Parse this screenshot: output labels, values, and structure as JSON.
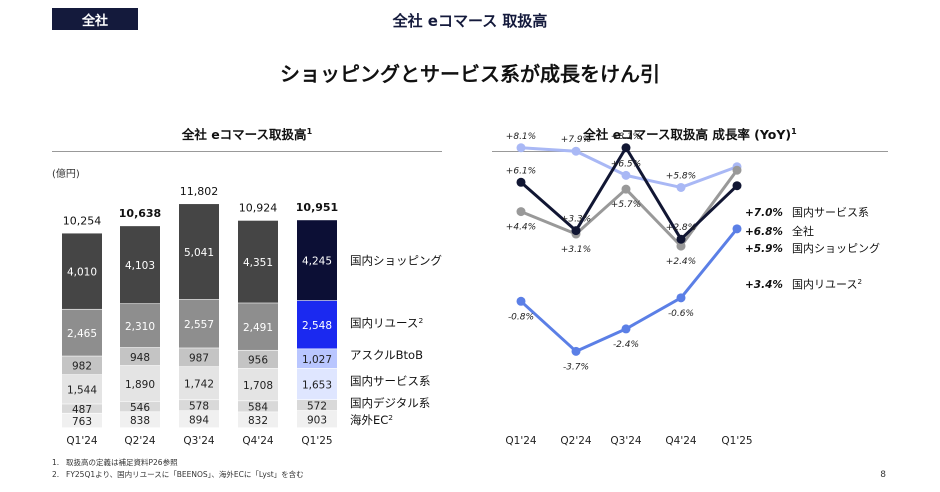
{
  "header": {
    "tag": "全社",
    "title": "全社 eコマース 取扱高",
    "headline": "ショッピングとサービス系が成長をけん引"
  },
  "left_chart": {
    "title": "全社 eコマース取扱高",
    "title_sup": "1",
    "unit": "(億円)"
  },
  "right_chart": {
    "title": "全社 eコマース取扱高 成長率 (YoY)",
    "title_sup": "1"
  },
  "footnotes": [
    {
      "num": "1.",
      "text": "取扱高の定義は補足資料P26参照"
    },
    {
      "num": "2.",
      "text": "FY25Q1より、国内リユースに「BEENOS」、海外ECに「Lyst」を含む"
    }
  ],
  "page_number": "8",
  "chart_data": [
    {
      "type": "bar",
      "stacked": true,
      "title": "全社 eコマース取扱高",
      "unit": "(億円)",
      "categories": [
        "Q1'24",
        "Q2'24",
        "Q3'24",
        "Q4'24",
        "Q1'25"
      ],
      "totals": [
        10254,
        10638,
        11802,
        10924,
        10951
      ],
      "totals_text": [
        "10,254",
        "10,638",
        "11,802",
        "10,924",
        "10,951"
      ],
      "total_bold": [
        false,
        true,
        false,
        false,
        true
      ],
      "series": [
        {
          "name": "海外EC",
          "sup": "2",
          "values": [
            763,
            838,
            894,
            832,
            903
          ],
          "labels": [
            "763",
            "838",
            "894",
            "832",
            "903"
          ],
          "colors": [
            "#f0f0f0",
            "#f0f0f0"
          ],
          "label_color": "#222"
        },
        {
          "name": "国内デジタル系",
          "values": [
            487,
            546,
            578,
            584,
            572
          ],
          "labels": [
            "487",
            "546",
            "578",
            "584",
            "572"
          ],
          "colors": [
            "#d9d9d9",
            "#d9d9d9"
          ],
          "label_color": "#222"
        },
        {
          "name": "国内サービス系",
          "values": [
            1544,
            1890,
            1742,
            1708,
            1653
          ],
          "labels": [
            "1,544",
            "1,890",
            "1,742",
            "1,708",
            "1,653"
          ],
          "colors": [
            "#e4e4e4",
            "#dfe6ff"
          ],
          "label_color": "#222"
        },
        {
          "name": "アスクルBtoB",
          "values": [
            982,
            948,
            987,
            956,
            1027
          ],
          "labels": [
            "982",
            "948",
            "987",
            "956",
            "1,027"
          ],
          "colors": [
            "#c4c4c4",
            "#b9c6ff"
          ],
          "label_color": "#222"
        },
        {
          "name": "国内リユース",
          "sup": "2",
          "values": [
            2465,
            2310,
            2557,
            2491,
            2548
          ],
          "labels": [
            "2,465",
            "2,310",
            "2,557",
            "2,491",
            "2,548"
          ],
          "colors": [
            "#8e8e8e",
            "#1b29f0"
          ],
          "label_color": "#ffffff"
        },
        {
          "name": "国内ショッピング",
          "values": [
            4010,
            4103,
            5041,
            4351,
            4245
          ],
          "labels": [
            "4,010",
            "4,103",
            "5,041",
            "4,351",
            "4,245"
          ],
          "colors": [
            "#454545",
            "#0c0f35"
          ],
          "label_color": "#ffffff"
        }
      ]
    },
    {
      "type": "line",
      "title": "全社 eコマース取扱高 成長率 (YoY)",
      "categories": [
        "Q1'24",
        "Q2'24",
        "Q3'24",
        "Q4'24",
        "Q1'25"
      ],
      "ylim": [
        -4.5,
        9
      ],
      "series": [
        {
          "name": "国内サービス系",
          "values": [
            8.1,
            7.9,
            6.5,
            5.8,
            7.0
          ],
          "labels": [
            "+8.1%",
            "+7.9%",
            "+6.5%",
            "+5.8%",
            "+7.0%"
          ],
          "color": "#a9b8f5",
          "label_pos": [
            "above",
            "above",
            "above",
            "above",
            "left"
          ]
        },
        {
          "name": "全社",
          "values": [
            4.4,
            3.1,
            5.7,
            2.4,
            6.8
          ],
          "labels": [
            "+4.4%",
            "+3.1%",
            "+5.7%",
            "+2.4%",
            "+6.8%"
          ],
          "color": "#999999",
          "label_pos": [
            "below",
            "below",
            "below",
            "below",
            "left"
          ]
        },
        {
          "name": "国内ショッピング",
          "values": [
            6.1,
            3.3,
            8.1,
            2.8,
            5.9
          ],
          "labels": [
            "+6.1%",
            "+3.3%",
            "+8.1%",
            "+2.8%",
            "+5.9%"
          ],
          "color": "#111633",
          "label_pos": [
            "above",
            "above",
            "above",
            "above",
            "left"
          ]
        },
        {
          "name": "国内リユース",
          "sup": "2",
          "values": [
            -0.8,
            -3.7,
            -2.4,
            -0.6,
            3.4
          ],
          "labels": [
            "-0.8%",
            "-3.7%",
            "-2.4%",
            "-0.6%",
            "+3.4%"
          ],
          "color": "#5b7fe6",
          "label_pos": [
            "below",
            "below",
            "below",
            "below",
            "left"
          ]
        }
      ]
    }
  ]
}
